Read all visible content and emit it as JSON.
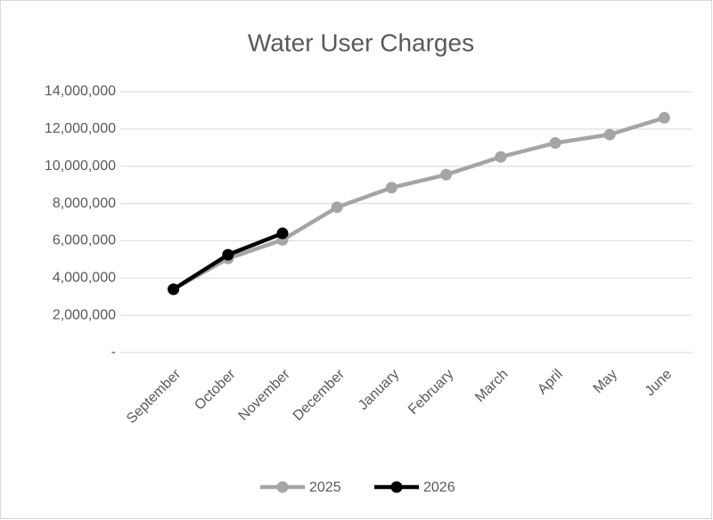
{
  "chart_data": {
    "type": "line",
    "title": "Water User Charges",
    "categories": [
      "September",
      "October",
      "November",
      "December",
      "January",
      "February",
      "March",
      "April",
      "May",
      "June"
    ],
    "series": [
      {
        "name": "2025",
        "color": "#a5a5a5",
        "values": [
          3400000,
          5050000,
          6050000,
          7800000,
          8850000,
          9550000,
          10500000,
          11250000,
          11700000,
          12600000
        ]
      },
      {
        "name": "2026",
        "color": "#000000",
        "values": [
          3400000,
          5250000,
          6400000,
          null,
          null,
          null,
          null,
          null,
          null,
          null
        ]
      }
    ],
    "ylim": [
      0,
      14000000
    ],
    "yticks": [
      {
        "value": 0,
        "label": "-"
      },
      {
        "value": 2000000,
        "label": "2,000,000"
      },
      {
        "value": 4000000,
        "label": "4,000,000"
      },
      {
        "value": 6000000,
        "label": "6,000,000"
      },
      {
        "value": 8000000,
        "label": "8,000,000"
      },
      {
        "value": 10000000,
        "label": "10,000,000"
      },
      {
        "value": 12000000,
        "label": "12,000,000"
      },
      {
        "value": 14000000,
        "label": "14,000,000"
      }
    ],
    "grid": true,
    "legend": "bottom"
  }
}
